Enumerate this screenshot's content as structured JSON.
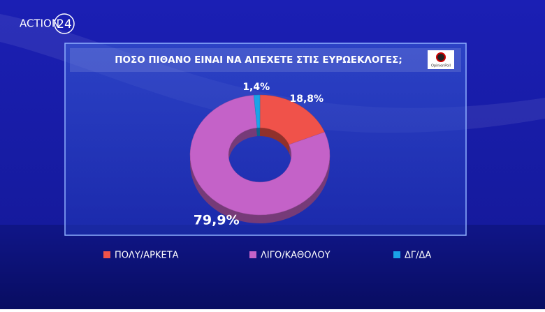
{
  "chart_data": {
    "type": "donut",
    "channel_logo": "ACTION",
    "channel_number": "24",
    "title": "ΠΟΣΟ ΠΙΘΑΝΟ ΕΙΝΑΙ ΝΑ ΑΠΕΧΕΤΕ ΣΤΙΣ ΕΥΡΩΕΚΛΟΓΕΣ;",
    "source": "OpinionPoll",
    "categories": [
      "ΠΟΛΥ/ΑΡΚΕΤΑ",
      "ΛΙΓΟ/ΚΑΘΟΛΟΥ",
      "ΔΓ/ΔΑ"
    ],
    "values": [
      18.8,
      79.9,
      1.4
    ],
    "value_labels": [
      "18,8%",
      "79,9%",
      "1,4%"
    ],
    "colors": [
      "#f0524a",
      "#c462c8",
      "#1aa3e8"
    ]
  }
}
